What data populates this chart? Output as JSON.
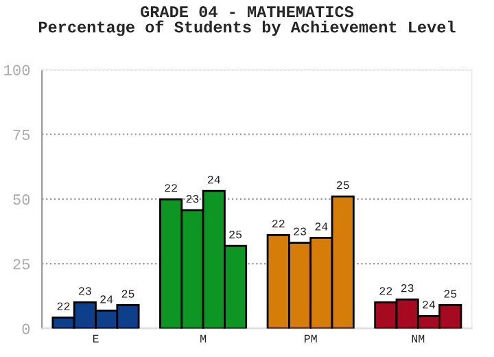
{
  "chart_data": {
    "type": "bar",
    "title": "GRADE 04 - MATHEMATICS\nPercentage of Students by Achievement Level",
    "categories": [
      "E",
      "M",
      "PM",
      "NM"
    ],
    "series": [
      {
        "name": "22",
        "colors": [
          "#0d3f8a",
          "#0e9624",
          "#d67c08",
          "#a50a20"
        ],
        "values": [
          4.2,
          49.9,
          36.1,
          10.1
        ]
      },
      {
        "name": "23",
        "colors": [
          "#0d3f8a",
          "#0e9624",
          "#d67c08",
          "#a50a20"
        ],
        "values": [
          10.1,
          45.7,
          33.1,
          11.2
        ]
      },
      {
        "name": "24",
        "colors": [
          "#0d3f8a",
          "#0e9624",
          "#d67c08",
          "#a50a20"
        ],
        "values": [
          6.9,
          53.1,
          35.0,
          4.8
        ]
      },
      {
        "name": "25",
        "colors": [
          "#0d3f8a",
          "#0e9624",
          "#d67c08",
          "#a50a20"
        ],
        "values": [
          9.0,
          31.9,
          51.0,
          9.0
        ]
      }
    ],
    "ylim": [
      0,
      100
    ],
    "yticks": [
      0,
      25,
      50,
      75,
      100
    ],
    "grid": "y",
    "legend": false
  }
}
